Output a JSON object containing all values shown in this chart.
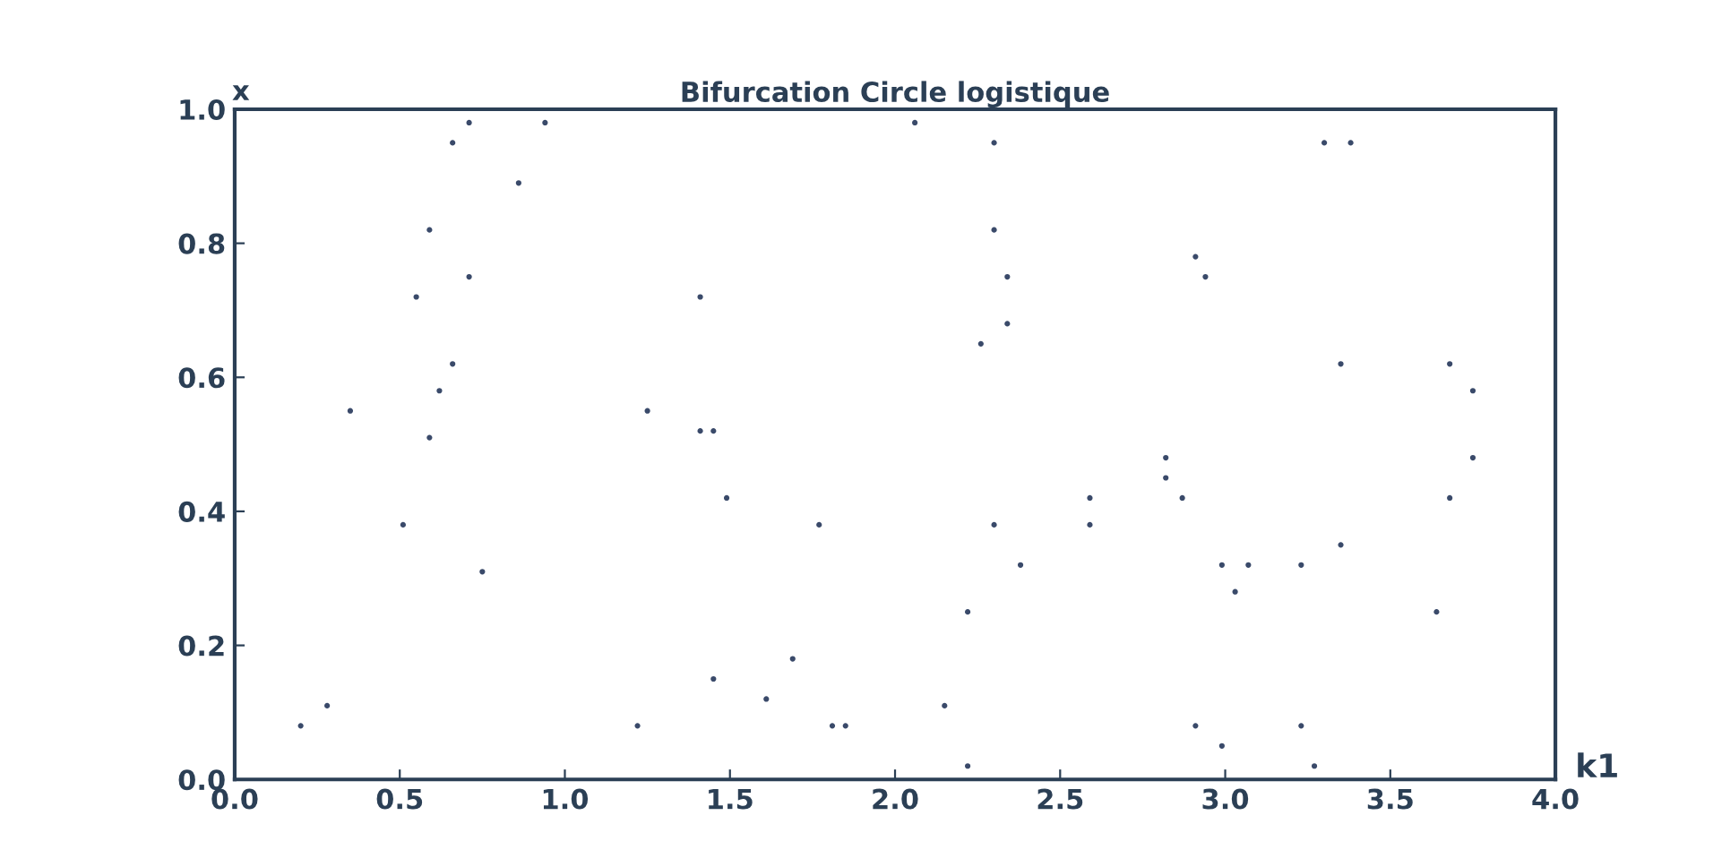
{
  "chart_data": {
    "type": "scatter",
    "title": "Bifurcation Circle logistique",
    "xlabel": "k1",
    "ylabel": "x",
    "x": [
      0.71,
      0.94,
      0.66,
      0.86,
      0.59,
      0.71,
      0.55,
      1.41,
      0.66,
      0.62,
      0.35,
      1.25,
      0.59,
      1.41,
      1.45,
      1.49,
      0.51,
      1.77,
      0.75,
      1.69,
      1.45,
      0.28,
      1.61,
      0.2,
      1.22,
      1.81,
      1.85,
      2.06,
      2.3,
      2.3,
      2.34,
      2.34,
      2.26,
      2.91,
      2.94,
      3.35,
      3.68,
      3.75,
      3.75,
      2.82,
      2.82,
      2.87,
      2.59,
      2.59,
      2.3,
      3.68,
      3.35,
      2.38,
      2.99,
      3.07,
      3.23,
      3.03,
      2.22,
      3.64,
      2.15,
      2.91,
      3.23,
      2.99,
      2.22,
      3.27,
      3.3,
      3.38
    ],
    "values": [
      0.98,
      0.98,
      0.95,
      0.89,
      0.82,
      0.75,
      0.72,
      0.72,
      0.62,
      0.58,
      0.55,
      0.55,
      0.51,
      0.52,
      0.52,
      0.42,
      0.38,
      0.38,
      0.31,
      0.18,
      0.15,
      0.11,
      0.12,
      0.08,
      0.08,
      0.08,
      0.08,
      0.98,
      0.95,
      0.82,
      0.75,
      0.68,
      0.65,
      0.78,
      0.75,
      0.62,
      0.62,
      0.58,
      0.48,
      0.48,
      0.45,
      0.42,
      0.42,
      0.38,
      0.38,
      0.42,
      0.35,
      0.32,
      0.32,
      0.32,
      0.32,
      0.28,
      0.25,
      0.25,
      0.11,
      0.08,
      0.08,
      0.05,
      0.02,
      0.02,
      0.95,
      0.95
    ],
    "color": "#3a4a6a",
    "marker": "circle",
    "grid": false,
    "xlim": [
      0.0,
      4.0
    ],
    "xticks": [
      {
        "value": 0,
        "label": "0.0"
      },
      0.5,
      {
        "value": 1,
        "label": "1.0"
      },
      1.5,
      {
        "value": 2,
        "label": "2.0"
      },
      2.5,
      {
        "value": 3,
        "label": "3.0"
      },
      3.5,
      {
        "value": 4,
        "label": "4.0"
      }
    ],
    "ylim": [
      0.0,
      1.0
    ],
    "yticks": [
      {
        "value": 0,
        "label": "0.0"
      },
      0.2,
      0.4,
      0.6,
      0.8,
      {
        "value": 1,
        "label": "1.0"
      }
    ]
  }
}
